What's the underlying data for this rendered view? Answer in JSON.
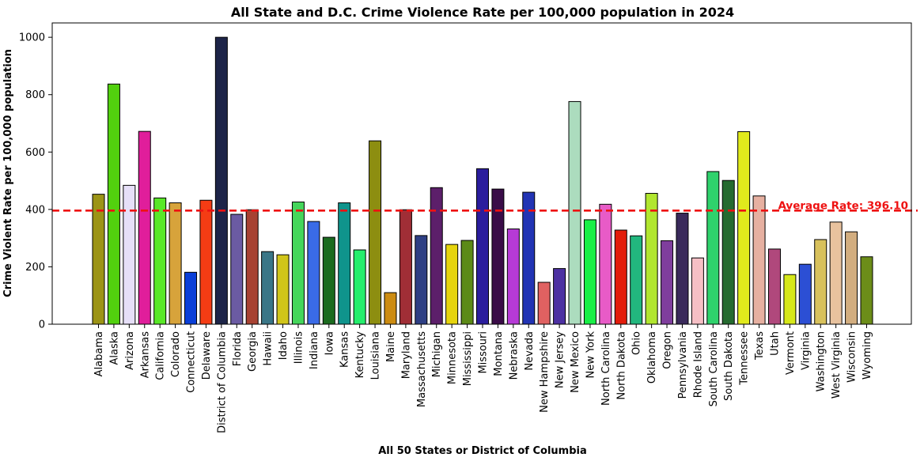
{
  "chart_data": {
    "type": "bar",
    "title": "All State and D.C. Crime Violence Rate per 100,000 population in 2024",
    "xlabel": "All 50 States or District of Columbia",
    "ylabel": "Crime Violent Rate per 100,000 population",
    "ylim": [
      0,
      1050
    ],
    "yticks": [
      "0",
      "200",
      "400",
      "600",
      "800",
      "1000"
    ],
    "grid": false,
    "average": {
      "value": 396.1,
      "label": "Average Rate: 396.10",
      "color": "#ee1111",
      "style": "dashed"
    },
    "categories": [
      "Alabama",
      "Alaska",
      "Arizona",
      "Arkansas",
      "California",
      "Colorado",
      "Connecticut",
      "Delaware",
      "District of Columbia",
      "Florida",
      "Georgia",
      "Hawaii",
      "Idaho",
      "Illinois",
      "Indiana",
      "Iowa",
      "Kansas",
      "Kentucky",
      "Louisiana",
      "Maine",
      "Maryland",
      "Massachusetts",
      "Michigan",
      "Minnesota",
      "Mississippi",
      "Missouri",
      "Montana",
      "Nebraska",
      "Nevada",
      "New Hampshire",
      "New Jersey",
      "New Mexico",
      "New York",
      "North Carolina",
      "North Dakota",
      "Ohio",
      "Oklahoma",
      "Oregon",
      "Pennsylvania",
      "Rhode Island",
      "South Carolina",
      "South Dakota",
      "Tennessee",
      "Texas",
      "Utah",
      "Vermont",
      "Virginia",
      "Washington",
      "West Virginia",
      "Wisconsin",
      "Wyoming"
    ],
    "values": [
      453,
      837,
      484,
      672,
      440,
      423,
      181,
      432,
      1000,
      383,
      399,
      253,
      242,
      426,
      358,
      303,
      423,
      259,
      639,
      110,
      399,
      309,
      476,
      278,
      292,
      542,
      471,
      332,
      460,
      146,
      194,
      776,
      364,
      418,
      328,
      308,
      456,
      291,
      387,
      231,
      532,
      501,
      671,
      447,
      262,
      173,
      209,
      295,
      356,
      322,
      235
    ],
    "colors": [
      "#9c9416",
      "#52d10e",
      "#e6dff8",
      "#e01e9b",
      "#59e828",
      "#d7a33b",
      "#0a3fd8",
      "#f53c14",
      "#1d2448",
      "#6b5ba3",
      "#a74232",
      "#3a7687",
      "#d1c51a",
      "#45d65b",
      "#3a6be7",
      "#1b6b1f",
      "#0f948c",
      "#25ee6c",
      "#8d8e10",
      "#cc8c12",
      "#a02e36",
      "#2e3f84",
      "#5c1f6a",
      "#e6d40d",
      "#5c8a17",
      "#2b1d9d",
      "#3a0c48",
      "#b63ad6",
      "#2234b4",
      "#e06161",
      "#4d31a2",
      "#acdcbe",
      "#19ef46",
      "#e85bc7",
      "#e31c0b",
      "#22b77e",
      "#b1e62f",
      "#7f3e9d",
      "#3a2a5b",
      "#f6bfc5",
      "#2fd26c",
      "#256b30",
      "#e1ea1c",
      "#e6b0a1",
      "#b0487c",
      "#d6e81a",
      "#2c4fd4",
      "#d8c15c",
      "#e8c29e",
      "#d2ad7f",
      "#6c8d19"
    ]
  }
}
